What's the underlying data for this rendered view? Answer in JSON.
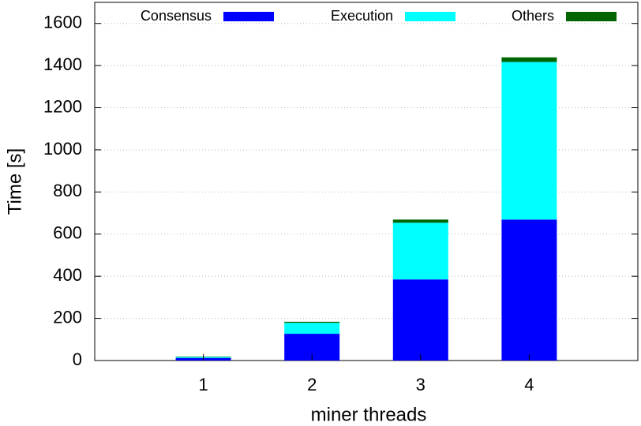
{
  "chart_data": {
    "type": "stacked_bar",
    "x_label": "miner threads",
    "y_label": "Time [s]",
    "categories": [
      "1",
      "2",
      "3",
      "4"
    ],
    "series": [
      {
        "name": "Consensus",
        "color": "#0000ff",
        "values": [
          12,
          127,
          385,
          669
        ]
      },
      {
        "name": "Execution",
        "color": "#00ffff",
        "values": [
          5,
          52,
          269,
          748
        ]
      },
      {
        "name": "Others",
        "color": "#006400",
        "values": [
          2,
          5,
          15,
          22
        ]
      }
    ],
    "ylim": [
      0,
      1700
    ],
    "yticks": [
      0,
      200,
      400,
      600,
      800,
      1000,
      1200,
      1400,
      1600
    ],
    "grid": true,
    "legend": "top"
  }
}
